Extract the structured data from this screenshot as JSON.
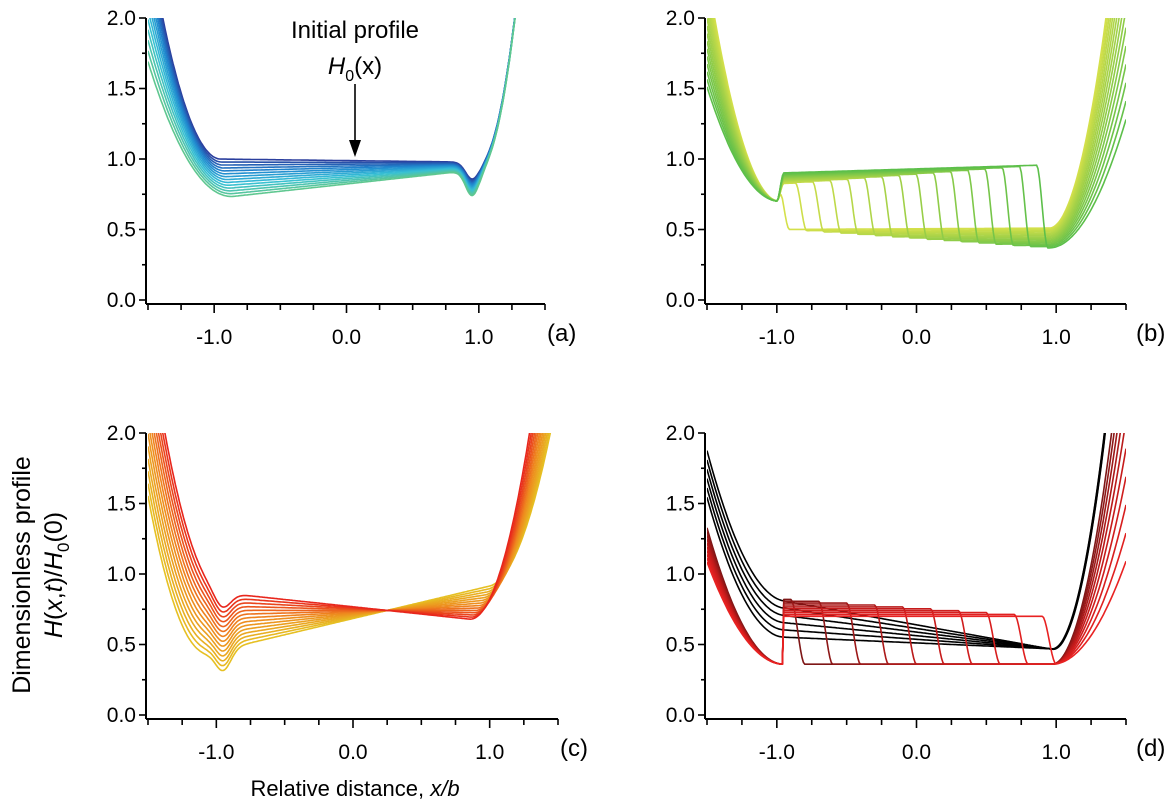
{
  "ylabel_line1": "Dimensionless profile",
  "ylabel_parts": [
    "H",
    "(",
    "x",
    ",",
    "t",
    ")/",
    "H",
    "0",
    "(0)"
  ],
  "xlabel_text": "Relative distance, ",
  "xlabel_var": "x/b",
  "annotation": {
    "line1": "Initial profile",
    "sym": "H",
    "sub": "0",
    "rest": "(x)"
  },
  "chart_data": [
    {
      "type": "line",
      "panel_label": "(a)",
      "xlim": [
        -1.5,
        1.5
      ],
      "ylim": [
        0,
        2
      ],
      "x_tick_labels": [
        "-1.0",
        "0.0",
        "1.0"
      ],
      "y_tick_labels": [
        "0.0",
        "0.5",
        "1.0",
        "1.5",
        "2.0"
      ],
      "colors": [
        "#2b3f9e",
        "#1f87cf",
        "#37c0d6",
        "#5fc790"
      ],
      "series_count": 14,
      "description_of_family": "plateau decreasing from ~1.0 to ~0.7 at left, dip near x=0.95 (~0.8)",
      "family": {
        "plateau_left": [
          1.0,
          0.72
        ],
        "plateau_right": [
          0.98,
          0.9
        ],
        "left_wall_x": [
          -1.25,
          -1.48
        ],
        "right_wall_x": [
          1.28,
          1.28
        ],
        "dip_x": 0.95,
        "dip_y": [
          0.82,
          0.76
        ],
        "front_x": [
          0.75,
          0.75
        ]
      }
    },
    {
      "type": "line",
      "panel_label": "(b)",
      "xlim": [
        -1.5,
        1.5
      ],
      "ylim": [
        0,
        2
      ],
      "x_tick_labels": [
        "-1.0",
        "0.0",
        "1.0"
      ],
      "y_tick_labels": [
        "0.0",
        "0.5",
        "1.0",
        "1.5",
        "2.0"
      ],
      "colors": [
        "#d4e04a",
        "#9ccf48",
        "#5cbf4a"
      ],
      "series_count": 16,
      "description_of_family": "step front travelling from x=-0.95 to x=0.9; plateau ~0.85 behind, ~0.38-0.5 ahead",
      "family": {
        "high_level": [
          0.82,
          0.9
        ],
        "low_level": [
          0.5,
          0.36
        ],
        "left_wall_x": [
          -1.5,
          -1.5
        ],
        "right_wall_x": [
          1.25,
          1.5
        ],
        "front_x": [
          -0.95,
          0.9
        ]
      }
    },
    {
      "type": "line",
      "panel_label": "(c)",
      "xlim": [
        -1.5,
        1.5
      ],
      "ylim": [
        0,
        2
      ],
      "x_tick_labels": [
        "-1.0",
        "0.0",
        "1.0"
      ],
      "y_tick_labels": [
        "0.0",
        "0.5",
        "1.0",
        "1.5",
        "2.0"
      ],
      "colors": [
        "#e6c023",
        "#ee8a1e",
        "#e8261c"
      ],
      "series_count": 14,
      "description_of_family": "plateau tilting from rising (left 0.45 to right 0.9) to falling (left 0.85 to right 0.7), dip near x=-0.95",
      "family": {
        "plateau_left": [
          0.5,
          0.85
        ],
        "plateau_right": [
          0.88,
          0.68
        ],
        "left_wall_x": [
          -1.5,
          -1.3
        ],
        "right_wall_x": [
          1.05,
          1.42
        ],
        "dip_x": -0.95,
        "dip_y": [
          0.43,
          0.7
        ]
      }
    },
    {
      "type": "line",
      "panel_label": "(d)",
      "xlim": [
        -1.5,
        1.5
      ],
      "ylim": [
        0,
        2
      ],
      "x_tick_labels": [
        "-1.0",
        "0.0",
        "1.0"
      ],
      "y_tick_labels": [
        "0.0",
        "0.5",
        "1.0",
        "1.5",
        "2.0"
      ],
      "colors": [
        "#000000",
        "#8c1a1a",
        "#e02020"
      ],
      "series_count": 16,
      "description_of_family": "black profiles sloping 0.8 to 0.45; red step front travelling from x=-0.85 to x=0.95 over a 0.35 floor",
      "family": {
        "black_left": [
          0.8,
          0.55
        ],
        "black_right": [
          0.45,
          0.45
        ],
        "high_level": [
          0.82,
          0.7
        ],
        "low_level": 0.36,
        "left_wall_x": [
          -1.5,
          -1.5
        ],
        "right_wall_x": [
          1.3,
          1.5
        ],
        "front_x": [
          -0.85,
          0.95
        ]
      }
    }
  ]
}
